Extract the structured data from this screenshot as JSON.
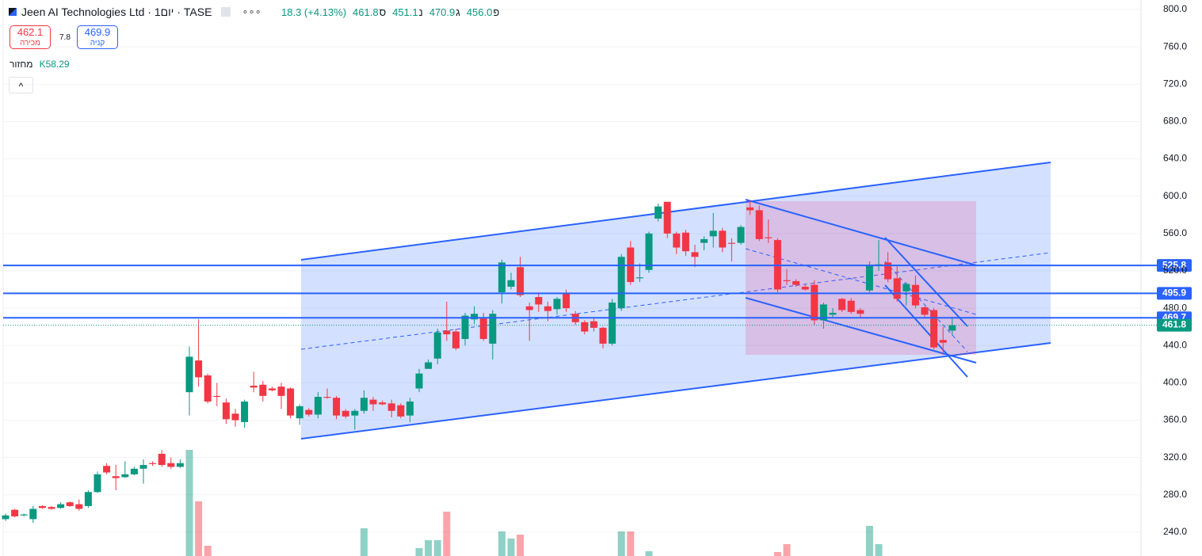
{
  "header": {
    "symbol": "Jeen AI Technologies Ltd · 1יום · TASE",
    "ohlc": [
      {
        "label": "פ",
        "value": "456.0"
      },
      {
        "label": "ג",
        "value": "470.9"
      },
      {
        "label": "נ",
        "value": "451.1"
      },
      {
        "label": "ס",
        "value": "461.8"
      }
    ],
    "change": "18.3 (+4.13%)",
    "sell_price": "462.1",
    "sell_label": "מכירה",
    "spread": "7.8",
    "buy_price": "469.9",
    "buy_label": "קניה",
    "volume_label": "מחזור",
    "volume_value": "K58.29"
  },
  "chart_data": {
    "type": "candlestick",
    "up_color": "#089981",
    "down_color": "#f23645",
    "open": [
      254,
      264,
      258,
      254,
      268,
      267,
      266,
      272,
      270,
      268,
      283,
      311,
      300,
      299,
      302,
      308,
      314,
      324,
      314,
      310,
      390,
      424,
      408,
      386,
      379,
      367,
      358,
      397,
      398,
      394,
      396,
      394,
      362,
      371,
      366,
      385,
      384,
      370,
      365,
      370,
      382,
      379,
      378,
      376,
      365,
      394,
      415,
      426,
      456,
      455,
      447,
      468,
      470,
      442,
      497,
      503,
      524,
      482,
      492,
      482,
      479,
      496,
      474,
      465,
      466,
      459,
      442,
      480,
      545,
      512,
      521,
      576,
      594,
      560,
      561,
      540,
      550,
      557,
      563,
      550,
      550,
      588,
      585,
      556,
      553,
      510,
      509,
      503,
      505,
      467,
      473,
      490,
      488,
      478,
      499,
      526,
      529,
      512,
      498,
      505,
      481,
      478,
      446,
      456.0
    ],
    "high": [
      260,
      265,
      260,
      268,
      269,
      268,
      272,
      273,
      275,
      285,
      305,
      314,
      312,
      316,
      310,
      318,
      316,
      328,
      320,
      318,
      439,
      468,
      410,
      400,
      383,
      372,
      382,
      412,
      402,
      396,
      400,
      395,
      377,
      373,
      390,
      394,
      386,
      372,
      372,
      392,
      385,
      381,
      382,
      378,
      384,
      415,
      425,
      458,
      487,
      458,
      475,
      482,
      475,
      478,
      532,
      518,
      535,
      486,
      497,
      487,
      492,
      500,
      477,
      467,
      470,
      460,
      490,
      538,
      552,
      528,
      562,
      592,
      592,
      562,
      564,
      548,
      557,
      582,
      566,
      555,
      569,
      596,
      590,
      575,
      555,
      522,
      511,
      505,
      510,
      486,
      480,
      491,
      491,
      480,
      530,
      553,
      540,
      525,
      508,
      515,
      482,
      480,
      460,
      470.9
    ],
    "low": [
      252,
      256,
      257,
      250,
      265,
      264,
      265,
      267,
      263,
      266,
      282,
      302,
      285,
      298,
      301,
      292,
      311,
      310,
      308,
      309,
      365,
      396,
      378,
      375,
      356,
      353,
      352,
      390,
      380,
      391,
      372,
      362,
      355,
      364,
      362,
      383,
      361,
      362,
      350,
      367,
      370,
      376,
      363,
      362,
      358,
      390,
      415,
      420,
      445,
      435,
      440,
      463,
      445,
      425,
      485,
      500,
      492,
      445,
      476,
      466,
      473,
      476,
      462,
      452,
      455,
      437,
      440,
      477,
      505,
      508,
      518,
      573,
      555,
      538,
      536,
      524,
      542,
      545,
      540,
      530,
      548,
      580,
      552,
      550,
      497,
      505,
      503,
      499,
      462,
      458,
      470,
      476,
      474,
      470,
      497,
      520,
      508,
      487,
      483,
      480,
      470,
      436,
      430,
      451.1
    ],
    "close": [
      258,
      257,
      259,
      265,
      266,
      265,
      270,
      268,
      265,
      283,
      302,
      304,
      298,
      302,
      308,
      312,
      313,
      312,
      310,
      314,
      428,
      406,
      380,
      385,
      361,
      360,
      380,
      395,
      386,
      392,
      386,
      365,
      375,
      366,
      385,
      384,
      365,
      364,
      370,
      384,
      377,
      377,
      370,
      364,
      380,
      410,
      422,
      454,
      452,
      437,
      472,
      474,
      447,
      474,
      529,
      510,
      494,
      478,
      484,
      477,
      490,
      480,
      465,
      455,
      459,
      442,
      486,
      535,
      508,
      513,
      560,
      589,
      560,
      545,
      541,
      535,
      554,
      563,
      545,
      549,
      567,
      585,
      554,
      555,
      500,
      509,
      505,
      500,
      467,
      484,
      475,
      478,
      476,
      474,
      526,
      527,
      511,
      490,
      506,
      483,
      473,
      438,
      443,
      461.8
    ],
    "volume": [
      0,
      0,
      0,
      0,
      0,
      0,
      0,
      0,
      0,
      0,
      0,
      0,
      0,
      0,
      0,
      0,
      0,
      0,
      0,
      0,
      134,
      69,
      13,
      0,
      0,
      0,
      0,
      0,
      0,
      0,
      0,
      0,
      0,
      0,
      0,
      0,
      0,
      0,
      0,
      35,
      0,
      0,
      0,
      0,
      0,
      10,
      20,
      20,
      56,
      0,
      0,
      0,
      0,
      0,
      31,
      22,
      27,
      0,
      0,
      0,
      0,
      0,
      0,
      0,
      0,
      0,
      0,
      31,
      31,
      0,
      6,
      0,
      0,
      0,
      0,
      0,
      0,
      0,
      0,
      0,
      0,
      0,
      0,
      0,
      5,
      15,
      0,
      0,
      0,
      0,
      0,
      0,
      0,
      0,
      38,
      15,
      0,
      0,
      0,
      0,
      0,
      0,
      0,
      0
    ],
    "ylim": [
      214.5,
      810.2
    ],
    "yticks": [
      {
        "value": 240,
        "label": "240.0"
      },
      {
        "value": 280,
        "label": "280.0"
      },
      {
        "value": 320,
        "label": "320.0"
      },
      {
        "value": 360,
        "label": "360.0"
      },
      {
        "value": 400,
        "label": "400.0"
      },
      {
        "value": 440,
        "label": "440.0"
      },
      {
        "value": 480,
        "label": "480.0"
      },
      {
        "value": 520,
        "label": "520.0"
      },
      {
        "value": 560,
        "label": "560.0"
      },
      {
        "value": 600,
        "label": "600.0"
      },
      {
        "value": 640,
        "label": "640.0"
      },
      {
        "value": 680,
        "label": "680.0"
      },
      {
        "value": 720,
        "label": "720.0"
      },
      {
        "value": 760,
        "label": "760.0"
      },
      {
        "value": 800,
        "label": "800.0"
      }
    ],
    "price_lines": [
      {
        "value": 525.8,
        "color": "#2962ff"
      },
      {
        "value": 495.9,
        "color": "#2962ff"
      },
      {
        "value": 469.7,
        "color": "#2962ff"
      }
    ],
    "last_price": {
      "value": 461.8,
      "color": "#089981"
    }
  }
}
